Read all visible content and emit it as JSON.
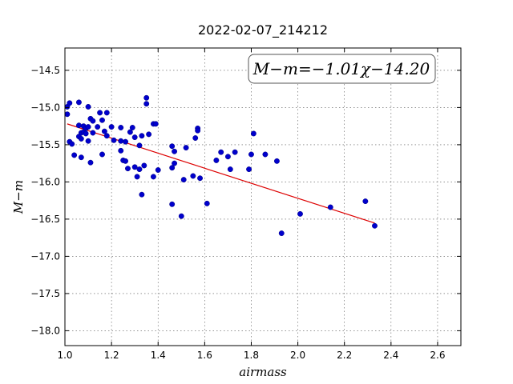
{
  "chart_data": {
    "type": "scatter",
    "title": "2022-02-07_214212",
    "xlabel": "airmass",
    "ylabel": "M−m",
    "xlim": [
      1.0,
      2.7
    ],
    "ylim": [
      -18.2,
      -14.2
    ],
    "x_ticks": [
      1.0,
      1.2,
      1.4,
      1.6,
      1.8,
      2.0,
      2.2,
      2.4,
      2.6
    ],
    "x_tick_labels": [
      "1.0",
      "1.2",
      "1.4",
      "1.6",
      "1.8",
      "2.0",
      "2.2",
      "2.4",
      "2.6"
    ],
    "y_ticks": [
      -14.5,
      -15.0,
      -15.5,
      -16.0,
      -16.5,
      -17.0,
      -17.5,
      -18.0
    ],
    "y_tick_labels": [
      "−14.5",
      "−15.0",
      "−15.5",
      "−16.0",
      "−16.5",
      "−17.0",
      "−17.5",
      "−18.0"
    ],
    "grid": true,
    "annotation": "M−m=−1.01χ−14.20",
    "annotation_position": "top-right",
    "colors": {
      "points": "#0000cc",
      "fit_line": "#dd0000"
    },
    "fit": {
      "slope": -1.01,
      "intercept": -14.2,
      "x_range": [
        1.01,
        2.33
      ]
    },
    "points": [
      [
        1.01,
        -15.09
      ],
      [
        1.01,
        -14.99
      ],
      [
        1.02,
        -14.94
      ],
      [
        1.02,
        -15.46
      ],
      [
        1.03,
        -15.49
      ],
      [
        1.04,
        -15.64
      ],
      [
        1.06,
        -14.93
      ],
      [
        1.06,
        -15.24
      ],
      [
        1.06,
        -15.39
      ],
      [
        1.07,
        -15.34
      ],
      [
        1.07,
        -15.42
      ],
      [
        1.07,
        -15.67
      ],
      [
        1.08,
        -15.25
      ],
      [
        1.08,
        -15.33
      ],
      [
        1.09,
        -15.28
      ],
      [
        1.09,
        -15.35
      ],
      [
        1.1,
        -14.99
      ],
      [
        1.1,
        -15.26
      ],
      [
        1.1,
        -15.45
      ],
      [
        1.11,
        -15.15
      ],
      [
        1.11,
        -15.74
      ],
      [
        1.12,
        -15.18
      ],
      [
        1.12,
        -15.34
      ],
      [
        1.14,
        -15.26
      ],
      [
        1.15,
        -15.07
      ],
      [
        1.16,
        -15.17
      ],
      [
        1.16,
        -15.63
      ],
      [
        1.17,
        -15.32
      ],
      [
        1.18,
        -15.07
      ],
      [
        1.18,
        -15.38
      ],
      [
        1.2,
        -15.26
      ],
      [
        1.21,
        -15.44
      ],
      [
        1.24,
        -15.27
      ],
      [
        1.24,
        -15.45
      ],
      [
        1.24,
        -15.58
      ],
      [
        1.25,
        -15.71
      ],
      [
        1.26,
        -15.46
      ],
      [
        1.26,
        -15.72
      ],
      [
        1.27,
        -15.82
      ],
      [
        1.28,
        -15.33
      ],
      [
        1.29,
        -15.27
      ],
      [
        1.3,
        -15.4
      ],
      [
        1.3,
        -15.8
      ],
      [
        1.31,
        -15.93
      ],
      [
        1.32,
        -15.51
      ],
      [
        1.32,
        -15.83
      ],
      [
        1.33,
        -15.38
      ],
      [
        1.33,
        -16.17
      ],
      [
        1.34,
        -15.78
      ],
      [
        1.35,
        -14.87
      ],
      [
        1.35,
        -14.95
      ],
      [
        1.36,
        -15.36
      ],
      [
        1.38,
        -15.22
      ],
      [
        1.38,
        -15.93
      ],
      [
        1.39,
        -15.22
      ],
      [
        1.4,
        -15.84
      ],
      [
        1.46,
        -15.52
      ],
      [
        1.46,
        -15.81
      ],
      [
        1.46,
        -16.3
      ],
      [
        1.47,
        -15.59
      ],
      [
        1.47,
        -15.75
      ],
      [
        1.5,
        -16.46
      ],
      [
        1.51,
        -15.97
      ],
      [
        1.52,
        -15.54
      ],
      [
        1.55,
        -15.92
      ],
      [
        1.56,
        -15.41
      ],
      [
        1.57,
        -15.28
      ],
      [
        1.57,
        -15.31
      ],
      [
        1.58,
        -15.95
      ],
      [
        1.61,
        -16.29
      ],
      [
        1.65,
        -15.71
      ],
      [
        1.67,
        -15.6
      ],
      [
        1.7,
        -15.66
      ],
      [
        1.71,
        -15.83
      ],
      [
        1.73,
        -15.6
      ],
      [
        1.79,
        -15.83
      ],
      [
        1.8,
        -15.63
      ],
      [
        1.81,
        -15.35
      ],
      [
        1.86,
        -15.63
      ],
      [
        1.91,
        -15.72
      ],
      [
        1.93,
        -16.69
      ],
      [
        2.01,
        -16.43
      ],
      [
        2.14,
        -16.34
      ],
      [
        2.29,
        -16.26
      ],
      [
        2.33,
        -16.59
      ]
    ]
  }
}
